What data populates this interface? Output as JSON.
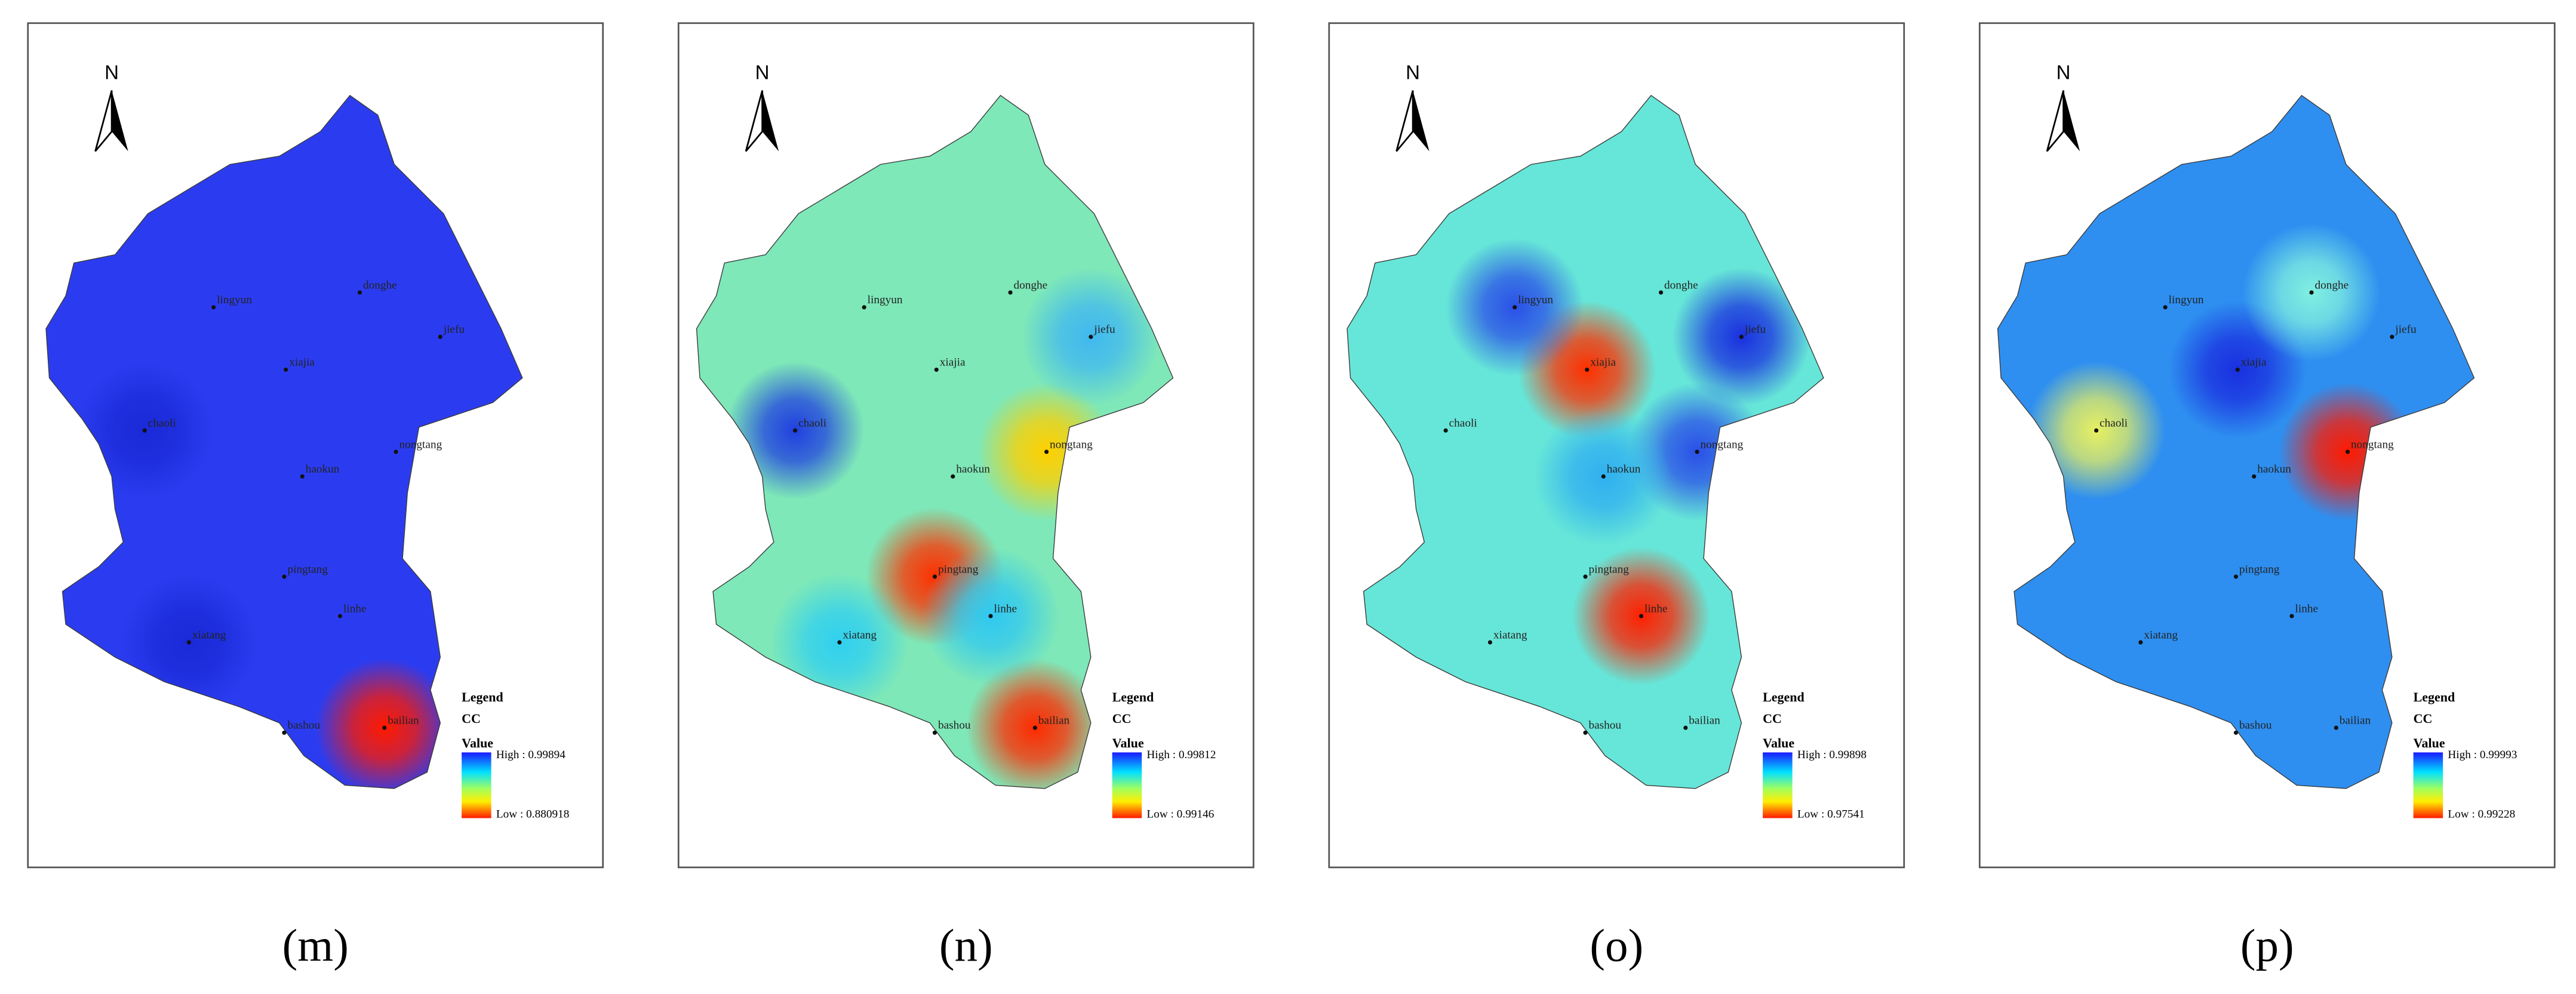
{
  "panels": [
    {
      "caption": "(m)",
      "north": "N",
      "legend_title": "Legend",
      "legend_field": "CC",
      "legend_value": "Value",
      "high": "High : 0.99894",
      "low": "Low : 0.880918",
      "base_color": "#2b3cf0",
      "hotspots": [
        {
          "station": 11,
          "color": "#ff1a00"
        },
        {
          "station": 9,
          "color": "#1a2ad8"
        },
        {
          "station": 4,
          "color": "#1a2ad8"
        }
      ]
    },
    {
      "caption": "(n)",
      "north": "N",
      "legend_title": "Legend",
      "legend_field": "CC",
      "legend_value": "Value",
      "high": "High : 0.99812",
      "low": "Low : 0.99146",
      "base_color": "#7ee8b8",
      "hotspots": [
        {
          "station": 5,
          "color": "#ffd000"
        },
        {
          "station": 7,
          "color": "#ff3000"
        },
        {
          "station": 11,
          "color": "#ff2a00"
        },
        {
          "station": 4,
          "color": "#2040e0"
        },
        {
          "station": 9,
          "color": "#30d0f0"
        },
        {
          "station": 8,
          "color": "#30c8f0"
        },
        {
          "station": 2,
          "color": "#40b8f0"
        }
      ]
    },
    {
      "caption": "(o)",
      "north": "N",
      "legend_title": "Legend",
      "legend_field": "CC",
      "legend_value": "Value",
      "high": "High : 0.99898",
      "low": "Low : 0.97541",
      "base_color": "#66e6d8",
      "hotspots": [
        {
          "station": 3,
          "color": "#ff3000"
        },
        {
          "station": 8,
          "color": "#ff2000"
        },
        {
          "station": 2,
          "color": "#1a30e0"
        },
        {
          "station": 0,
          "color": "#2a50e8"
        },
        {
          "station": 5,
          "color": "#2a50e8"
        },
        {
          "station": 6,
          "color": "#30b0f0"
        }
      ]
    },
    {
      "caption": "(p)",
      "north": "N",
      "legend_title": "Legend",
      "legend_field": "CC",
      "legend_value": "Value",
      "high": "High : 0.99993",
      "low": "Low : 0.99228",
      "base_color": "#2e8ff0",
      "hotspots": [
        {
          "station": 5,
          "color": "#ff1a00"
        },
        {
          "station": 3,
          "color": "#1a30e0"
        },
        {
          "station": 4,
          "color": "#e8f060"
        },
        {
          "station": 1,
          "color": "#80f0e0"
        }
      ]
    }
  ],
  "stations": [
    "lingyun",
    "donghe",
    "jiefu",
    "xiajia",
    "chaoli",
    "nongtang",
    "haokun",
    "pingtang",
    "linhe",
    "xiatang",
    "bashou",
    "bailian"
  ]
}
